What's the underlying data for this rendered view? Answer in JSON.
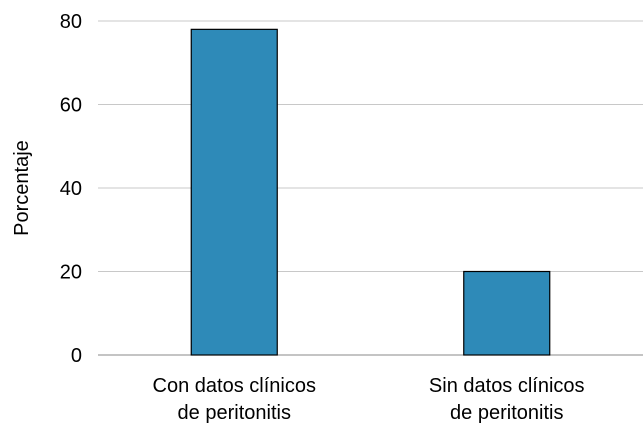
{
  "chart_data": {
    "type": "bar",
    "title": "",
    "xlabel": "",
    "ylabel": "Porcentaje",
    "categories": [
      [
        "Con datos clínicos",
        "de peritonitis"
      ],
      [
        "Sin datos clínicos",
        "de peritonitis"
      ]
    ],
    "values": [
      78,
      20
    ],
    "ylim": [
      0,
      80
    ],
    "yticks": [
      0,
      20,
      40,
      60,
      80
    ],
    "grid": true,
    "legend": "none",
    "bar_color": "#2e8ab8",
    "bar_edge_color": "#000000",
    "grid_color": "#c8c8c8"
  }
}
